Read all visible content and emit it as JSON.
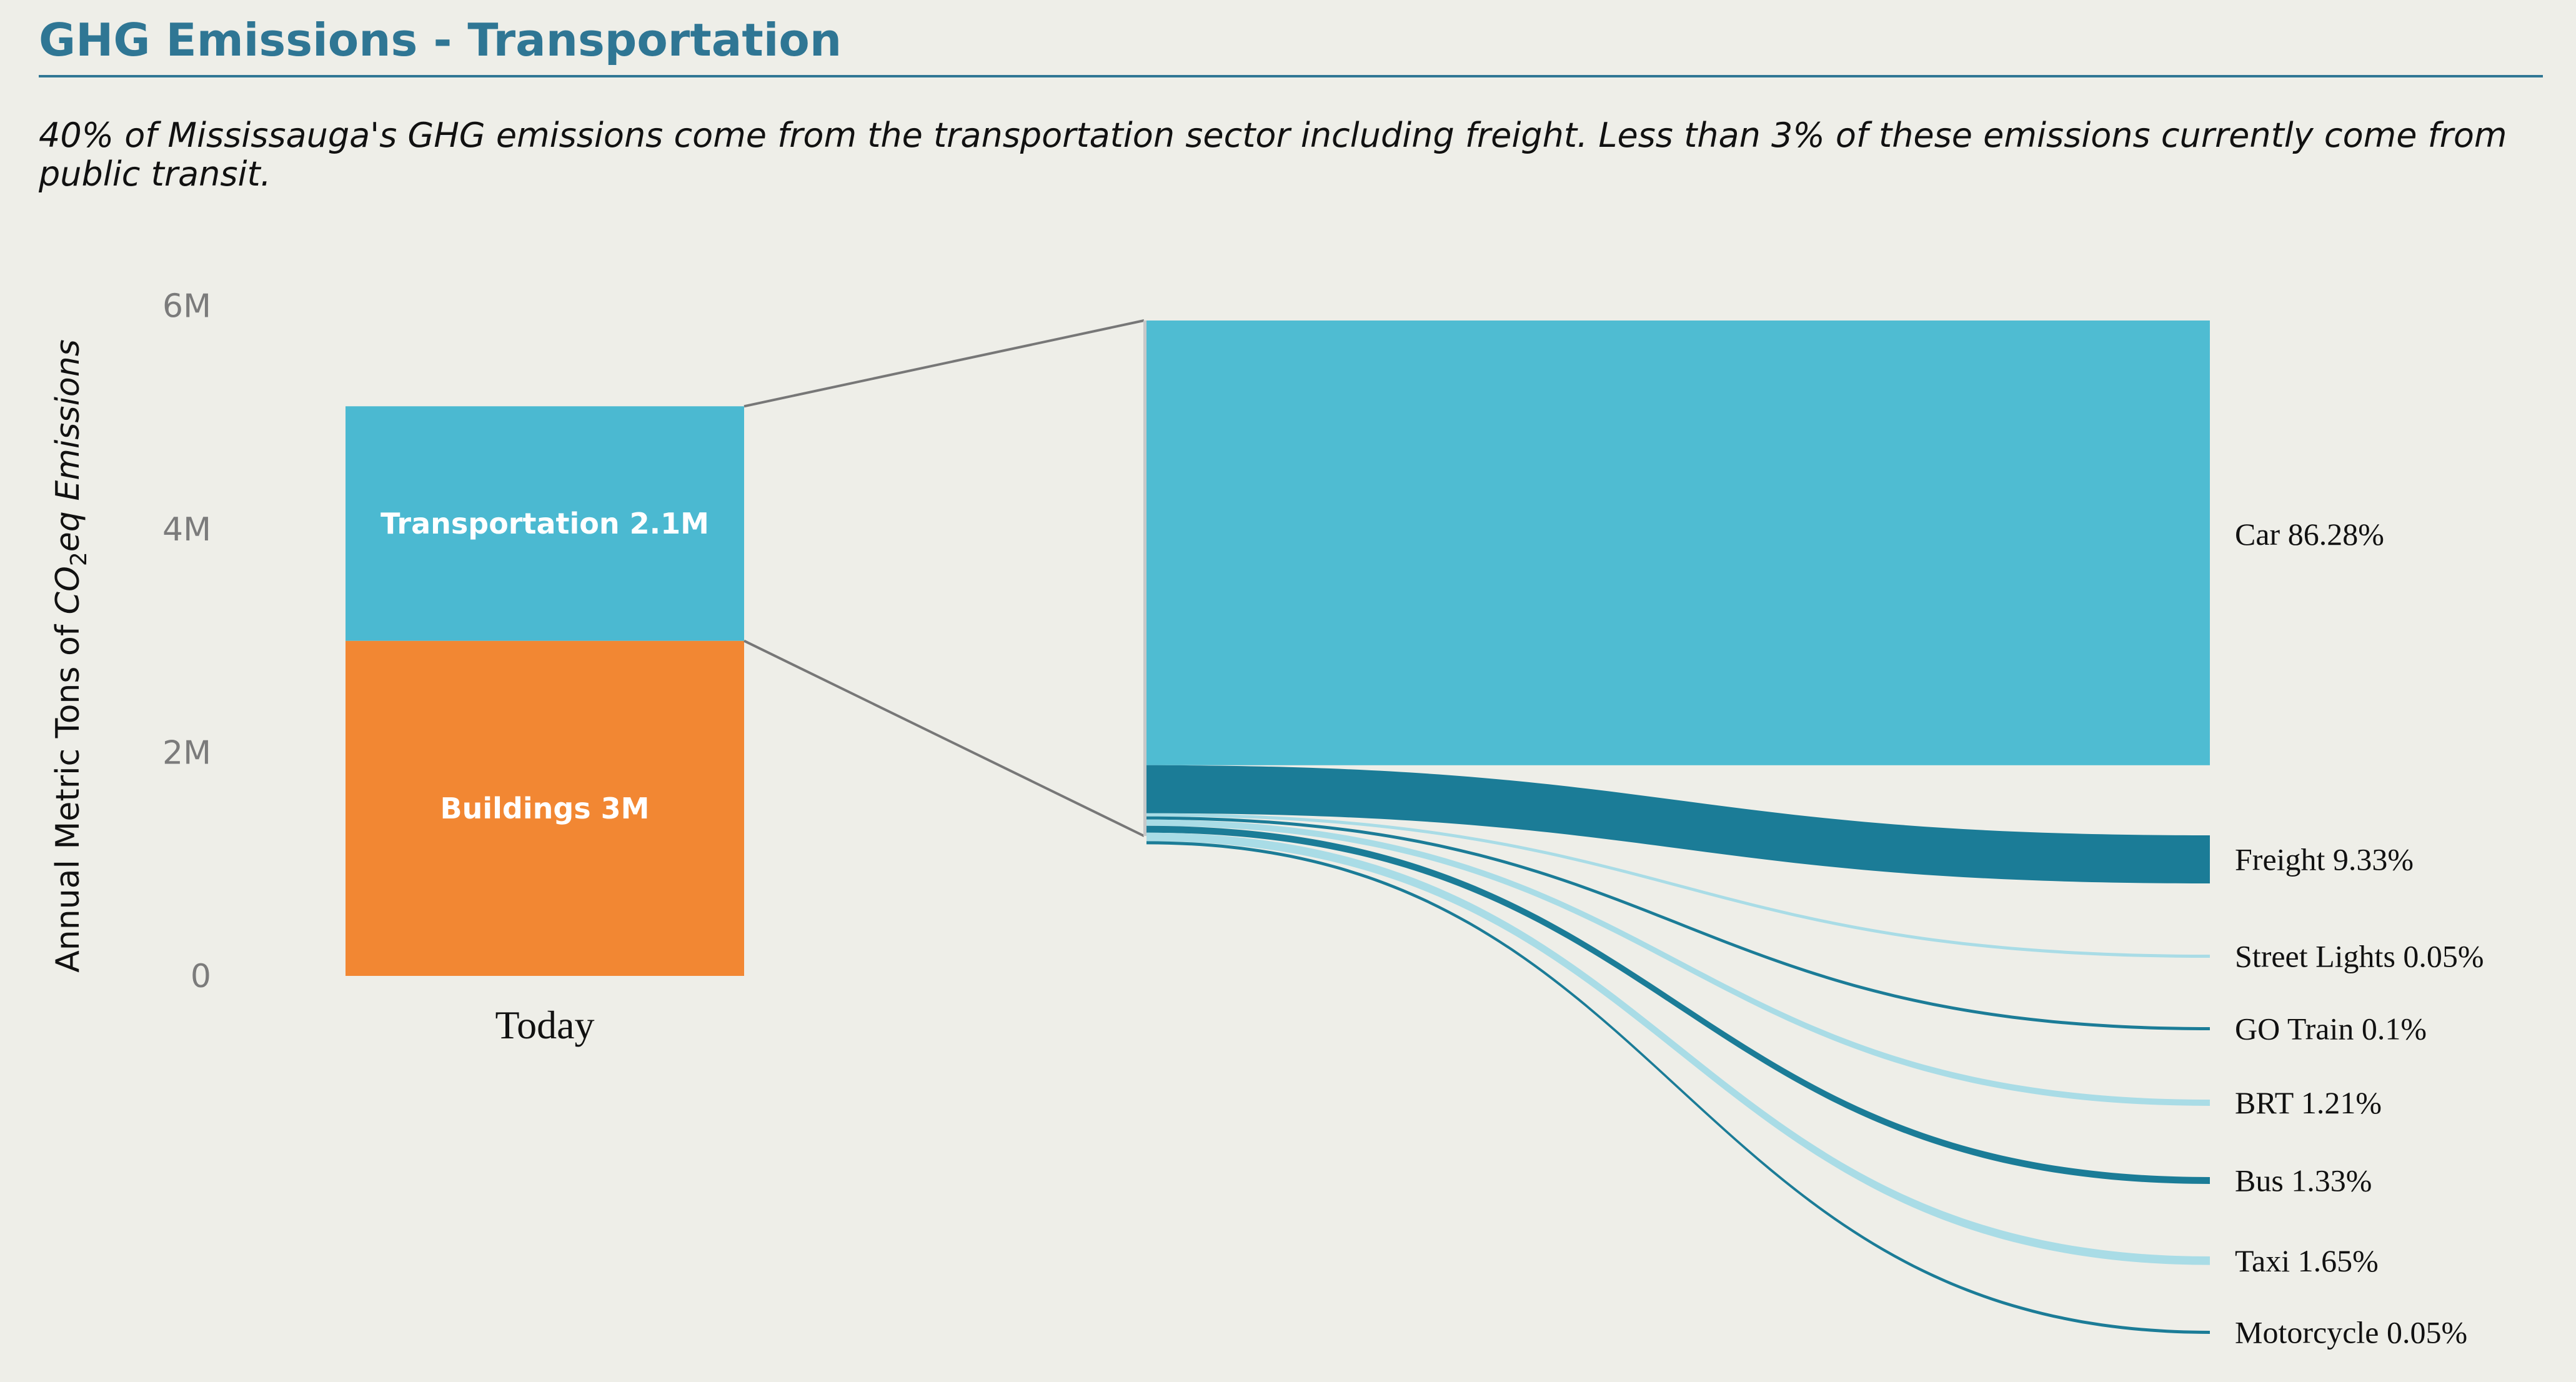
{
  "header": {
    "title": "GHG Emissions - Transportation",
    "subtitle": "40% of Mississauga's GHG emissions come from the transportation sector including freight. Less than 3% of these emissions currently come from public transit."
  },
  "chart_data": [
    {
      "type": "bar",
      "stacked": true,
      "ylabel": "Annual Metric Tons of CO₂eq Emissions",
      "ylabel_parts": [
        "Annual Metric Tons of ",
        "CO",
        "2",
        "eq Emissions"
      ],
      "yticks": [
        "0",
        "2M",
        "4M",
        "6M"
      ],
      "ytick_values": [
        0,
        2000000,
        4000000,
        6000000
      ],
      "ylim": [
        0,
        6500000
      ],
      "categories": [
        "Today"
      ],
      "series": [
        {
          "name": "Buildings",
          "values": [
            3000000
          ],
          "label": "Buildings 3M",
          "color": "#f28733"
        },
        {
          "name": "Transportation",
          "values": [
            2100000
          ],
          "label": "Transportation 2.1M",
          "color": "#4bb9d1"
        }
      ]
    },
    {
      "type": "sankey",
      "source": "Transportation",
      "flows": [
        {
          "name": "Car",
          "percent": 86.28,
          "label": "Car 86.28%",
          "color": "#4fbcd2"
        },
        {
          "name": "Freight",
          "percent": 9.33,
          "label": "Freight 9.33%",
          "color": "#1b7c97"
        },
        {
          "name": "Street Lights",
          "percent": 0.05,
          "label": "Street Lights 0.05%",
          "color": "#a9dce6"
        },
        {
          "name": "GO Train",
          "percent": 0.1,
          "label": "GO Train 0.1%",
          "color": "#1b7c97"
        },
        {
          "name": "BRT",
          "percent": 1.21,
          "label": "BRT 1.21%",
          "color": "#a9dce6"
        },
        {
          "name": "Bus",
          "percent": 1.33,
          "label": "Bus 1.33%",
          "color": "#1b7c97"
        },
        {
          "name": "Taxi",
          "percent": 1.65,
          "label": "Taxi 1.65%",
          "color": "#a9dce6"
        },
        {
          "name": "Motorcycle",
          "percent": 0.05,
          "label": "Motorcycle 0.05%",
          "color": "#1b7c97"
        }
      ]
    }
  ]
}
